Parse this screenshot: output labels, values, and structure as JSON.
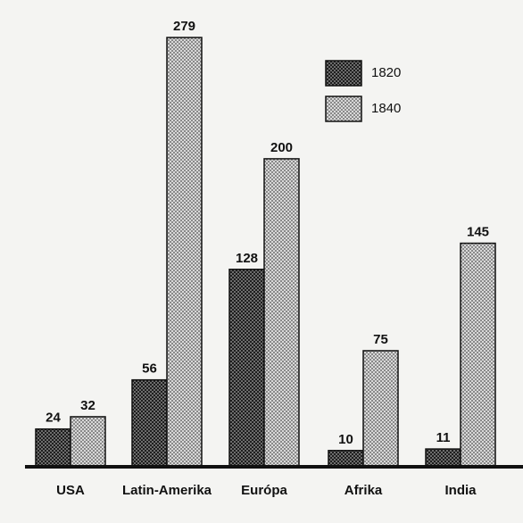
{
  "chart_data": {
    "type": "bar",
    "categories": [
      "USA",
      "Latin-Amerika",
      "Európa",
      "Afrika",
      "India"
    ],
    "series": [
      {
        "name": "1820",
        "color": "#1e1e1e",
        "values": [
          24,
          56,
          128,
          10,
          11
        ]
      },
      {
        "name": "1840",
        "color": "#d8d8d8",
        "values": [
          32,
          279,
          200,
          75,
          145
        ]
      }
    ]
  }
}
